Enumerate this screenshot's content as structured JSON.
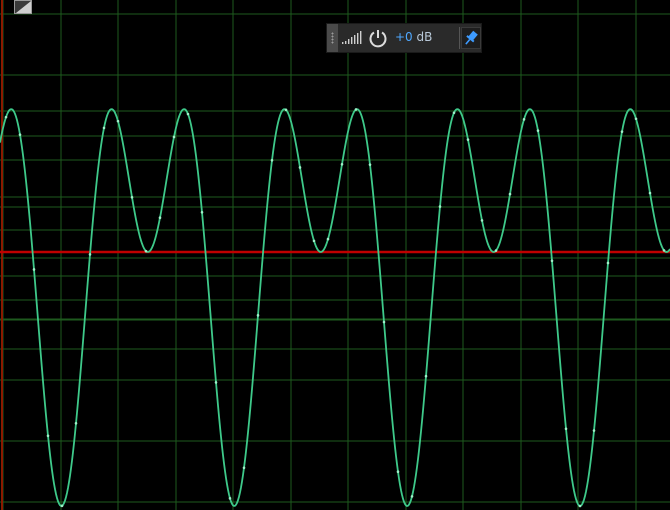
{
  "toolbar": {
    "gain_value": "+0",
    "gain_unit": "dB"
  },
  "icons": {
    "level_meter": "signal-meter-icon",
    "power": "power-icon",
    "pin": "pin-icon",
    "corner": "resize-corner-icon"
  },
  "colors": {
    "background": "#000000",
    "grid": "#1e5a1e",
    "waveform": "#3ec98a",
    "zero_line": "#c00000",
    "gain_text": "#4fa8ff"
  },
  "chart_data": {
    "type": "line",
    "title": "",
    "xlabel": "",
    "ylabel": "",
    "grid": true,
    "series": [
      {
        "components": [
          {
            "amplitude": 0.5,
            "cycles": 7.75
          },
          {
            "amplitude": 0.5,
            "cycles": 3.875
          }
        ]
      }
    ],
    "ylim": [
      -1.0,
      1.0
    ],
    "baseline": 0
  }
}
